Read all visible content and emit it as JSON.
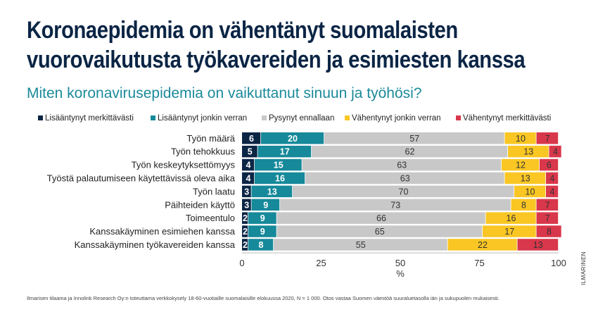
{
  "title_line1": "Koronaepidemia on vähentänyt suomalaisten",
  "title_line2": "vuorovaikutusta työkavereiden ja esimiesten kanssa",
  "subtitle": "Miten koronavirusepidemia on vaikuttanut sinuun ja työhösi?",
  "footnote": "Ilmarisen tilaama ja Innolink Research Oy:n toteuttama verkkokysely 18-60-vuotiaille suomalaisille elokuussa 2020, N = 1 000. Otos vastaa Suomen väestöä suuraluetasolla iän ja sukupuolen mukaisesti.",
  "brand": "ILMARINEN",
  "chart_data": {
    "type": "bar",
    "orientation": "horizontal",
    "stacked": true,
    "categories": [
      "Työn määrä",
      "Työn tehokkuus",
      "Työn keskeytyksettömyys",
      "Työstä palautumiseen käytettävissä oleva aika",
      "Työn laatu",
      "Päihteiden käyttö",
      "Toimeentulo",
      "Kanssakäyminen esimiehen kanssa",
      "Kanssakäyminen työkavereiden kanssa"
    ],
    "series": [
      {
        "name": "Lisääntynyt merkittävästi",
        "color": "#0b2545",
        "label_color": "#ffffff",
        "values": [
          6,
          5,
          4,
          4,
          3,
          3,
          2,
          2,
          2
        ]
      },
      {
        "name": "Lisääntynyt jonkin verran",
        "color": "#16899a",
        "label_color": "#ffffff",
        "values": [
          20,
          17,
          15,
          16,
          13,
          9,
          9,
          9,
          8
        ]
      },
      {
        "name": "Pysynyt ennallaan",
        "color": "#c8c8c8",
        "label_color": "#333333",
        "values": [
          57,
          62,
          63,
          63,
          70,
          73,
          66,
          65,
          55
        ]
      },
      {
        "name": "Vähentynyt jonkin verran",
        "color": "#f9c623",
        "label_color": "#333333",
        "values": [
          10,
          13,
          12,
          13,
          10,
          8,
          16,
          17,
          22
        ]
      },
      {
        "name": "Vähentynyt merkittävästi",
        "color": "#d9374b",
        "label_color": "#333333",
        "values": [
          7,
          4,
          6,
          4,
          4,
          7,
          7,
          8,
          13
        ]
      }
    ],
    "xlim": [
      0,
      100
    ],
    "xticks": [
      "0",
      "25",
      "50",
      "75",
      "100"
    ],
    "xlabel": "%",
    "legend_position": "top"
  }
}
